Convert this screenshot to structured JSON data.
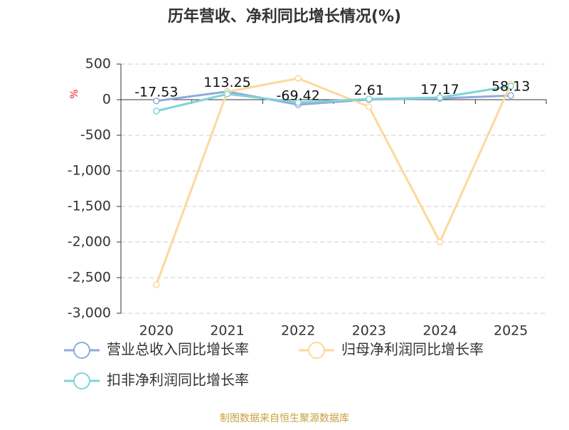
{
  "chart_data": {
    "type": "line",
    "title": "历年营收、净利同比增长情况(%)",
    "y_label": "%",
    "source": "制图数据来自恒生聚源数据库",
    "categories": [
      "2020",
      "2021",
      "2022",
      "2023",
      "2024",
      "2025"
    ],
    "series": [
      {
        "name": "营业总收入同比增长率",
        "color": "#8eaad9",
        "values": [
          -17.53,
          113.25,
          -69.42,
          2.61,
          17.17,
          58.13
        ],
        "show_labels": true
      },
      {
        "name": "归母净利润同比增长率",
        "color": "#fcd99a",
        "values": [
          -2600,
          110,
          300,
          -100,
          -2000,
          220
        ]
      },
      {
        "name": "扣非净利润同比增长率",
        "color": "#80d3d9",
        "values": [
          -160,
          80,
          -40,
          10,
          30,
          190
        ]
      }
    ],
    "ylim": [
      -3000,
      500
    ],
    "yticks": [
      500,
      0,
      -500,
      {
        "value": -1000,
        "label": "-1,000"
      },
      {
        "value": -1500,
        "label": "-1,500"
      },
      {
        "value": -2000,
        "label": "-2,000"
      },
      {
        "value": -2500,
        "label": "-2,500"
      },
      {
        "value": -3000,
        "label": "-3,000"
      }
    ],
    "grid": true,
    "legend": "bottom"
  }
}
